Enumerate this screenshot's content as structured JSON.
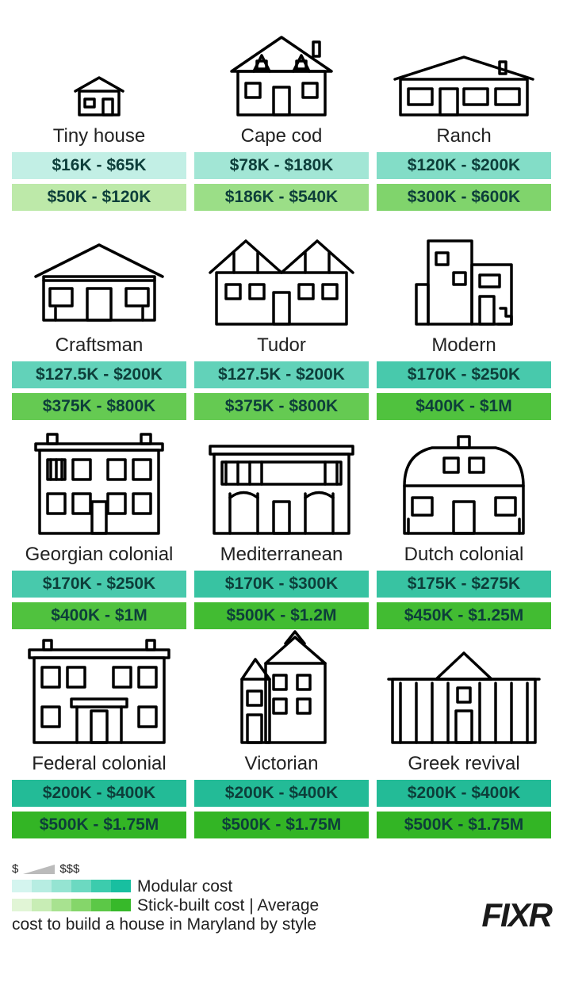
{
  "type": "infographic",
  "background_color": "#ffffff",
  "text_color": "#222222",
  "name_fontsize": 24,
  "price_fontsize": 21,
  "price_fontweight": 700,
  "modular_gradient": [
    "#d4f5ef",
    "#b7ede2",
    "#95e4d2",
    "#6cd9c1",
    "#3cccad",
    "#18bfa0"
  ],
  "stick_gradient": [
    "#e1f5d6",
    "#c8edb5",
    "#a8e290",
    "#85d66a",
    "#5cc847",
    "#37b92a"
  ],
  "houses": [
    {
      "name": "Tiny house",
      "modular": "$16K - $65K",
      "stick": "$50K - $120K",
      "modular_bg": "#c2efe5",
      "stick_bg": "#bde9a9"
    },
    {
      "name": "Cape cod",
      "modular": "$78K - $180K",
      "stick": "$186K - $540K",
      "modular_bg": "#a2e6d5",
      "stick_bg": "#9bde87"
    },
    {
      "name": "Ranch",
      "modular": "$120K - $200K",
      "stick": "$300K - $600K",
      "modular_bg": "#83ddc7",
      "stick_bg": "#80d46c"
    },
    {
      "name": "Craftsman",
      "modular": "$127.5K - $200K",
      "stick": "$375K - $800K",
      "modular_bg": "#62d2b9",
      "stick_bg": "#65ca52"
    },
    {
      "name": "Tudor",
      "modular": "$127.5K - $200K",
      "stick": "$375K - $800K",
      "modular_bg": "#62d2b9",
      "stick_bg": "#65ca52"
    },
    {
      "name": "Modern",
      "modular": "$170K - $250K",
      "stick": "$400K - $1M",
      "modular_bg": "#48c9ac",
      "stick_bg": "#50c23e"
    },
    {
      "name": "Georgian colonial",
      "modular": "$170K - $250K",
      "stick": "$400K - $1M",
      "modular_bg": "#48c9ac",
      "stick_bg": "#50c23e"
    },
    {
      "name": "Mediterranean",
      "modular": "$170K - $300K",
      "stick": "$500K - $1.2M",
      "modular_bg": "#38c3a2",
      "stick_bg": "#42bc32"
    },
    {
      "name": "Dutch colonial",
      "modular": "$175K - $275K",
      "stick": "$450K - $1.25M",
      "modular_bg": "#38c3a2",
      "stick_bg": "#42bc32"
    },
    {
      "name": "Federal colonial",
      "modular": "$200K - $400K",
      "stick": "$500K - $1.75M",
      "modular_bg": "#23bb97",
      "stick_bg": "#33b525"
    },
    {
      "name": "Victorian",
      "modular": "$200K - $400K",
      "stick": "$500K - $1.75M",
      "modular_bg": "#23bb97",
      "stick_bg": "#33b525"
    },
    {
      "name": "Greek revival",
      "modular": "$200K - $400K",
      "stick": "$500K - $1.75M",
      "modular_bg": "#23bb97",
      "stick_bg": "#33b525"
    }
  ],
  "legend": {
    "low": "$",
    "high": "$$$",
    "modular_label": "Modular cost",
    "stick_label": "Stick-built cost | Average",
    "caption": "cost to build a house in Maryland by style"
  },
  "logo": "FIXR"
}
